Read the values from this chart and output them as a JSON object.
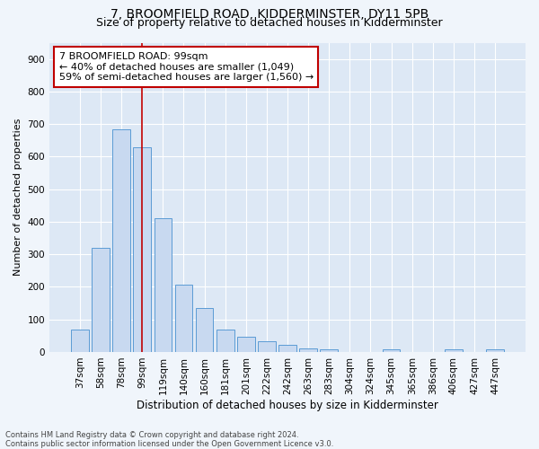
{
  "title": "7, BROOMFIELD ROAD, KIDDERMINSTER, DY11 5PB",
  "subtitle": "Size of property relative to detached houses in Kidderminster",
  "xlabel": "Distribution of detached houses by size in Kidderminster",
  "ylabel": "Number of detached properties",
  "footer_line1": "Contains HM Land Registry data © Crown copyright and database right 2024.",
  "footer_line2": "Contains public sector information licensed under the Open Government Licence v3.0.",
  "bar_labels": [
    "37sqm",
    "58sqm",
    "78sqm",
    "99sqm",
    "119sqm",
    "140sqm",
    "160sqm",
    "181sqm",
    "201sqm",
    "222sqm",
    "242sqm",
    "263sqm",
    "283sqm",
    "304sqm",
    "324sqm",
    "345sqm",
    "365sqm",
    "386sqm",
    "406sqm",
    "427sqm",
    "447sqm"
  ],
  "bar_values": [
    70,
    320,
    685,
    630,
    410,
    207,
    135,
    68,
    48,
    33,
    22,
    12,
    8,
    0,
    0,
    7,
    0,
    0,
    7,
    0,
    7
  ],
  "bar_color": "#c8d9f0",
  "bar_edge_color": "#5b9bd5",
  "vline_x_index": 3,
  "vline_color": "#c00000",
  "annotation_text": "7 BROOMFIELD ROAD: 99sqm\n← 40% of detached houses are smaller (1,049)\n59% of semi-detached houses are larger (1,560) →",
  "annotation_box_facecolor": "#ffffff",
  "annotation_box_edgecolor": "#c00000",
  "ylim": [
    0,
    950
  ],
  "yticks": [
    0,
    100,
    200,
    300,
    400,
    500,
    600,
    700,
    800,
    900
  ],
  "fig_bg_color": "#f0f5fb",
  "plot_bg_color": "#dde8f5",
  "grid_color": "#ffffff",
  "title_fontsize": 10,
  "subtitle_fontsize": 9,
  "ylabel_fontsize": 8,
  "xlabel_fontsize": 8.5,
  "tick_fontsize": 7.5,
  "annotation_fontsize": 8,
  "footer_fontsize": 6
}
